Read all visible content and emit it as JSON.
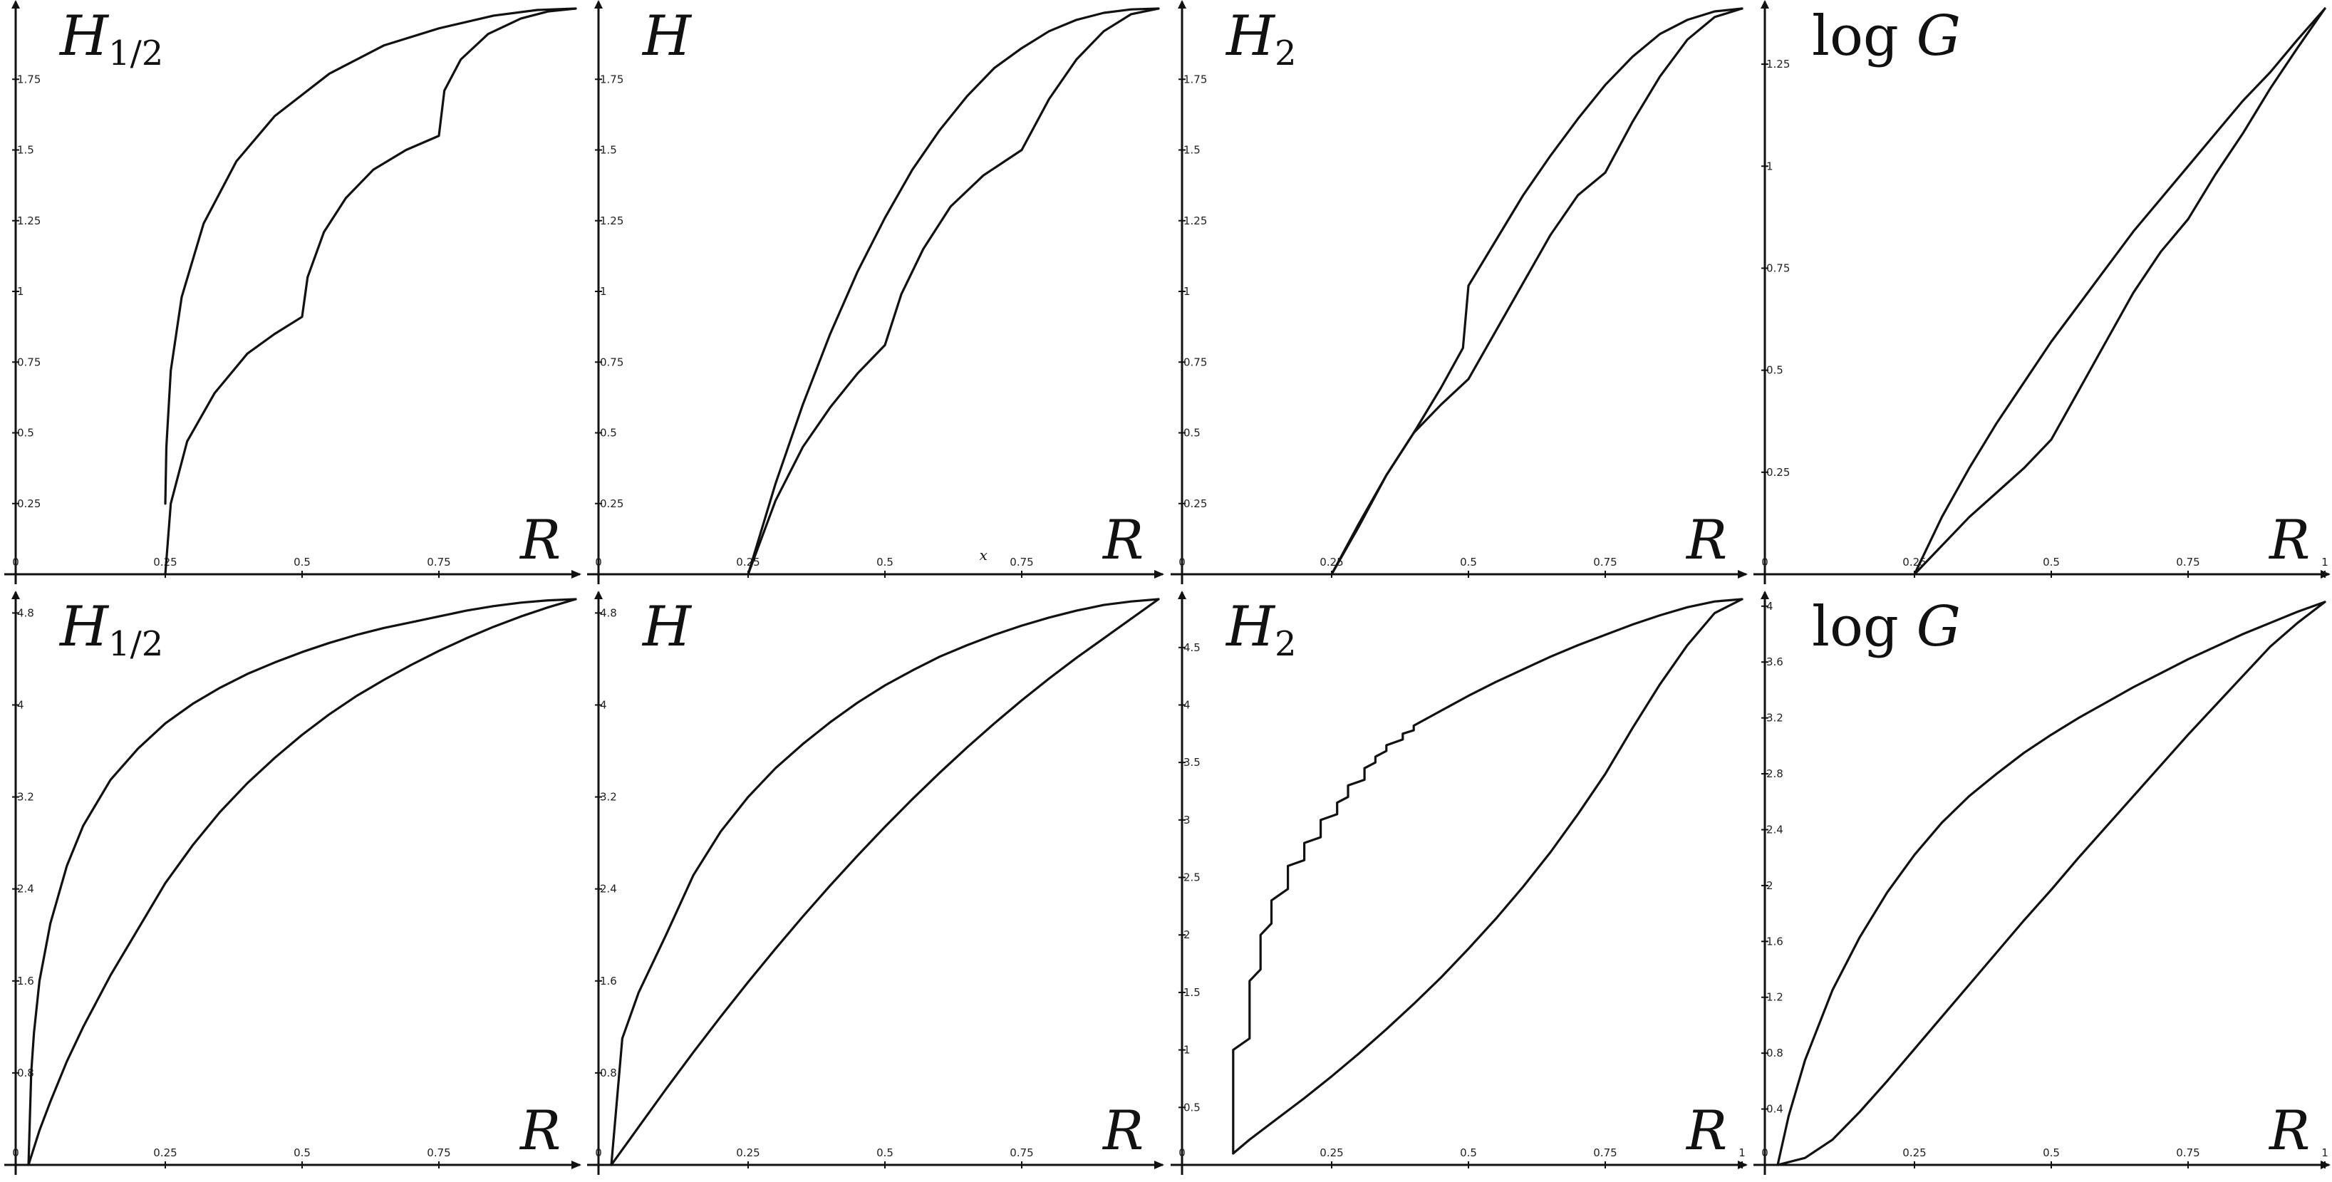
{
  "chart_data": [
    {
      "type": "line",
      "title_main": "H",
      "title_sub": "1/2",
      "xlabel": "R",
      "xlim": [
        0,
        1
      ],
      "ylim": [
        0,
        2
      ],
      "xticks": [
        "0",
        "0.25",
        "0.5",
        "0.75"
      ],
      "xtick_values": [
        0,
        0.25,
        0.5,
        0.75
      ],
      "yticks": [
        "0.25",
        "0.5",
        "0.75",
        "1",
        "1.25",
        "1.5",
        "1.75"
      ],
      "ytick_values": [
        0.25,
        0.5,
        0.75,
        1,
        1.25,
        1.5,
        1.75
      ],
      "series": [
        {
          "x": [
            0.25,
            0.252,
            0.26,
            0.28,
            0.32,
            0.38,
            0.45,
            0.55,
            0.65,
            0.75,
            0.85,
            0.93,
            1.0
          ],
          "values": [
            0.25,
            0.45,
            0.72,
            0.98,
            1.24,
            1.46,
            1.62,
            1.77,
            1.87,
            1.93,
            1.975,
            1.995,
            2.0
          ]
        },
        {
          "x": [
            0.25,
            0.26,
            0.29,
            0.34,
            0.4,
            0.45,
            0.5,
            0.51,
            0.54,
            0.58,
            0.63,
            0.69,
            0.75,
            0.76,
            0.79,
            0.84,
            0.9,
            0.95,
            1.0
          ],
          "values": [
            0.0,
            0.25,
            0.47,
            0.64,
            0.78,
            0.85,
            0.91,
            1.05,
            1.21,
            1.33,
            1.43,
            1.5,
            1.55,
            1.71,
            1.82,
            1.91,
            1.965,
            1.99,
            2.0
          ]
        }
      ]
    },
    {
      "type": "line",
      "title_main": "H",
      "title_sub": "",
      "xlabel": "R",
      "xlim": [
        0,
        1
      ],
      "ylim": [
        0,
        2
      ],
      "xticks": [
        "0",
        "0.25",
        "0.5",
        "0.75"
      ],
      "xtick_values": [
        0,
        0.25,
        0.5,
        0.75
      ],
      "yticks": [
        "0.25",
        "0.5",
        "0.75",
        "1",
        "1.25",
        "1.5",
        "1.75"
      ],
      "ytick_values": [
        0.25,
        0.5,
        0.75,
        1,
        1.25,
        1.5,
        1.75
      ],
      "stray_text": "x",
      "series": [
        {
          "x": [
            0.25,
            0.3,
            0.35,
            0.4,
            0.45,
            0.5,
            0.55,
            0.6,
            0.65,
            0.7,
            0.75,
            0.8,
            0.85,
            0.9,
            0.95,
            1.0
          ],
          "values": [
            0.0,
            0.32,
            0.6,
            0.85,
            1.07,
            1.26,
            1.43,
            1.57,
            1.69,
            1.79,
            1.86,
            1.92,
            1.96,
            1.985,
            1.997,
            2.0
          ]
        },
        {
          "x": [
            0.25,
            0.3,
            0.35,
            0.4,
            0.45,
            0.5,
            0.53,
            0.57,
            0.62,
            0.68,
            0.75,
            0.8,
            0.85,
            0.9,
            0.95,
            1.0
          ],
          "values": [
            0.0,
            0.26,
            0.45,
            0.59,
            0.71,
            0.81,
            0.99,
            1.15,
            1.3,
            1.41,
            1.5,
            1.68,
            1.82,
            1.92,
            1.98,
            2.0
          ]
        }
      ]
    },
    {
      "type": "line",
      "title_main": "H",
      "title_sub": "2",
      "xlabel": "R",
      "xlim": [
        0,
        1
      ],
      "ylim": [
        0,
        2
      ],
      "xticks": [
        "0",
        "0.25",
        "0.5",
        "0.75"
      ],
      "xtick_values": [
        0,
        0.25,
        0.5,
        0.75
      ],
      "yticks": [
        "0.25",
        "0.5",
        "0.75",
        "1",
        "1.25",
        "1.5",
        "1.75"
      ],
      "ytick_values": [
        0.25,
        0.5,
        0.75,
        1,
        1.25,
        1.5,
        1.75
      ],
      "series": [
        {
          "x": [
            0.25,
            0.3,
            0.35,
            0.4,
            0.45,
            0.49,
            0.5,
            0.55,
            0.6,
            0.65,
            0.7,
            0.75,
            0.8,
            0.85,
            0.9,
            0.95,
            1.0
          ],
          "values": [
            0.0,
            0.17,
            0.35,
            0.5,
            0.66,
            0.8,
            1.02,
            1.18,
            1.34,
            1.48,
            1.61,
            1.73,
            1.83,
            1.91,
            1.96,
            1.99,
            2.0
          ]
        },
        {
          "x": [
            0.25,
            0.3,
            0.35,
            0.4,
            0.45,
            0.5,
            0.55,
            0.6,
            0.65,
            0.7,
            0.75,
            0.8,
            0.85,
            0.9,
            0.95,
            1.0
          ],
          "values": [
            0.0,
            0.18,
            0.35,
            0.5,
            0.6,
            0.69,
            0.86,
            1.03,
            1.2,
            1.34,
            1.42,
            1.6,
            1.76,
            1.89,
            1.97,
            2.0
          ]
        }
      ]
    },
    {
      "type": "line",
      "title_main": "G",
      "title_fn": "log",
      "title_sub": "",
      "xlabel": "R",
      "xlim": [
        0,
        1
      ],
      "ylim": [
        0,
        1.3863
      ],
      "xticks": [
        "0",
        "0.25",
        "0.5",
        "0.75",
        "1"
      ],
      "xtick_values": [
        0,
        0.25,
        0.5,
        0.75,
        1
      ],
      "yticks": [
        "0.25",
        "0.5",
        "0.75",
        "1",
        "1.25"
      ],
      "ytick_values": [
        0.25,
        0.5,
        0.75,
        1,
        1.25
      ],
      "series": [
        {
          "x": [
            0.25,
            0.3,
            0.35,
            0.4,
            0.45,
            0.5,
            0.55,
            0.6,
            0.65,
            0.7,
            0.75,
            0.8,
            0.85,
            0.9,
            0.95,
            1.0
          ],
          "values": [
            0.0,
            0.14,
            0.26,
            0.37,
            0.47,
            0.57,
            0.66,
            0.75,
            0.84,
            0.92,
            1.0,
            1.08,
            1.16,
            1.23,
            1.31,
            1.3863
          ]
        },
        {
          "x": [
            0.25,
            0.3,
            0.35,
            0.4,
            0.45,
            0.5,
            0.55,
            0.6,
            0.65,
            0.7,
            0.75,
            0.8,
            0.85,
            0.9,
            0.95,
            1.0
          ],
          "values": [
            0.0,
            0.07,
            0.14,
            0.2,
            0.26,
            0.33,
            0.45,
            0.57,
            0.69,
            0.79,
            0.87,
            0.98,
            1.08,
            1.19,
            1.29,
            1.3863
          ]
        }
      ]
    },
    {
      "type": "line",
      "title_main": "H",
      "title_sub": "1/2",
      "xlabel": "R",
      "xlim": [
        0,
        1
      ],
      "ylim": [
        0,
        4.92
      ],
      "xticks": [
        "0",
        "0.25",
        "0.5",
        "0.75"
      ],
      "xtick_values": [
        0,
        0.25,
        0.5,
        0.75
      ],
      "yticks": [
        "0.8",
        "1.6",
        "2.4",
        "3.2",
        "4",
        "4.8"
      ],
      "ytick_values": [
        0.8,
        1.6,
        2.4,
        3.2,
        4,
        4.8
      ],
      "series": [
        {
          "x": [
            0,
            0.005,
            0.01,
            0.02,
            0.04,
            0.07,
            0.1,
            0.15,
            0.2,
            0.25,
            0.3,
            0.35,
            0.4,
            0.45,
            0.5,
            0.55,
            0.6,
            0.65,
            0.7,
            0.75,
            0.8,
            0.85,
            0.9,
            0.95,
            1.0
          ],
          "values": [
            0,
            0.8,
            1.15,
            1.6,
            2.1,
            2.6,
            2.95,
            3.35,
            3.62,
            3.84,
            4.01,
            4.15,
            4.27,
            4.37,
            4.46,
            4.54,
            4.61,
            4.67,
            4.72,
            4.77,
            4.82,
            4.86,
            4.89,
            4.91,
            4.92
          ]
        },
        {
          "x": [
            0,
            0.01,
            0.02,
            0.04,
            0.07,
            0.1,
            0.15,
            0.2,
            0.25,
            0.3,
            0.35,
            0.4,
            0.45,
            0.5,
            0.55,
            0.6,
            0.65,
            0.7,
            0.75,
            0.8,
            0.85,
            0.9,
            0.95,
            1.0
          ],
          "values": [
            0,
            0.15,
            0.3,
            0.55,
            0.9,
            1.2,
            1.65,
            2.05,
            2.45,
            2.78,
            3.07,
            3.32,
            3.54,
            3.74,
            3.92,
            4.08,
            4.22,
            4.35,
            4.47,
            4.58,
            4.68,
            4.77,
            4.85,
            4.92
          ]
        }
      ]
    },
    {
      "type": "line",
      "title_main": "H",
      "title_sub": "",
      "xlabel": "R",
      "xlim": [
        0,
        1
      ],
      "ylim": [
        0,
        4.92
      ],
      "xticks": [
        "0",
        "0.25",
        "0.5",
        "0.75"
      ],
      "xtick_values": [
        0,
        0.25,
        0.5,
        0.75
      ],
      "yticks": [
        "0.8",
        "1.6",
        "2.4",
        "3.2",
        "4",
        "4.8"
      ],
      "ytick_values": [
        0.8,
        1.6,
        2.4,
        3.2,
        4,
        4.8
      ],
      "series": [
        {
          "x": [
            0,
            0.02,
            0.05,
            0.1,
            0.15,
            0.2,
            0.25,
            0.3,
            0.35,
            0.4,
            0.45,
            0.5,
            0.55,
            0.6,
            0.65,
            0.7,
            0.75,
            0.8,
            0.85,
            0.9,
            0.95,
            1.0
          ],
          "values": [
            0,
            1.1,
            1.5,
            2.0,
            2.52,
            2.9,
            3.2,
            3.45,
            3.66,
            3.85,
            4.02,
            4.17,
            4.3,
            4.42,
            4.52,
            4.61,
            4.69,
            4.76,
            4.82,
            4.87,
            4.9,
            4.92
          ]
        },
        {
          "x": [
            0,
            0.05,
            0.1,
            0.15,
            0.2,
            0.25,
            0.3,
            0.35,
            0.4,
            0.45,
            0.5,
            0.55,
            0.6,
            0.65,
            0.7,
            0.75,
            0.8,
            0.85,
            0.9,
            0.95,
            1.0
          ],
          "values": [
            0,
            0.33,
            0.66,
            0.98,
            1.29,
            1.59,
            1.88,
            2.16,
            2.43,
            2.69,
            2.94,
            3.18,
            3.41,
            3.63,
            3.84,
            4.04,
            4.23,
            4.41,
            4.58,
            4.75,
            4.92
          ]
        }
      ]
    },
    {
      "type": "line",
      "title_main": "H",
      "title_sub": "2",
      "xlabel": "R",
      "xlim": [
        0,
        1
      ],
      "ylim": [
        0,
        4.92
      ],
      "xticks": [
        "0",
        "0.25",
        "0.5",
        "0.75",
        "1"
      ],
      "xtick_values": [
        0,
        0.25,
        0.5,
        0.75,
        1
      ],
      "yticks": [
        "0.5",
        "1",
        "1.5",
        "2",
        "2.5",
        "3",
        "3.5",
        "4",
        "4.5"
      ],
      "ytick_values": [
        0.5,
        1,
        1.5,
        2,
        2.5,
        3,
        3.5,
        4,
        4.5
      ],
      "series": [
        {
          "x": [
            0.07,
            0.07,
            0.1,
            0.1,
            0.12,
            0.12,
            0.14,
            0.14,
            0.17,
            0.17,
            0.2,
            0.2,
            0.23,
            0.23,
            0.26,
            0.26,
            0.28,
            0.28,
            0.31,
            0.31,
            0.33,
            0.33,
            0.35,
            0.35,
            0.38,
            0.38,
            0.4,
            0.4,
            0.45,
            0.5,
            0.55,
            0.6,
            0.65,
            0.7,
            0.75,
            0.8,
            0.85,
            0.9,
            0.95,
            1.0
          ],
          "values": [
            0.1,
            1.0,
            1.1,
            1.6,
            1.7,
            2.0,
            2.1,
            2.3,
            2.4,
            2.6,
            2.65,
            2.8,
            2.85,
            3.0,
            3.05,
            3.15,
            3.2,
            3.3,
            3.35,
            3.45,
            3.5,
            3.55,
            3.6,
            3.65,
            3.7,
            3.75,
            3.78,
            3.82,
            3.95,
            4.08,
            4.2,
            4.31,
            4.42,
            4.52,
            4.61,
            4.7,
            4.78,
            4.85,
            4.9,
            4.92
          ]
        },
        {
          "x": [
            0.07,
            0.1,
            0.15,
            0.2,
            0.25,
            0.3,
            0.35,
            0.4,
            0.45,
            0.5,
            0.55,
            0.6,
            0.65,
            0.7,
            0.75,
            0.8,
            0.85,
            0.9,
            0.95,
            1.0
          ],
          "values": [
            0.1,
            0.22,
            0.4,
            0.58,
            0.77,
            0.97,
            1.18,
            1.4,
            1.63,
            1.88,
            2.14,
            2.42,
            2.72,
            3.05,
            3.4,
            3.8,
            4.18,
            4.52,
            4.8,
            4.92
          ]
        }
      ]
    },
    {
      "type": "line",
      "title_main": "G",
      "title_fn": "log",
      "title_sub": "",
      "xlabel": "R",
      "xlim": [
        0,
        1
      ],
      "ylim": [
        0,
        4.05
      ],
      "xticks": [
        "0",
        "0.25",
        "0.5",
        "0.75",
        "1"
      ],
      "xtick_values": [
        0,
        0.25,
        0.5,
        0.75,
        1
      ],
      "yticks": [
        "0.4",
        "0.8",
        "1.2",
        "1.6",
        "2",
        "2.4",
        "2.8",
        "3.2",
        "3.6",
        "4"
      ],
      "ytick_values": [
        0.4,
        0.8,
        1.2,
        1.6,
        2,
        2.4,
        2.8,
        3.2,
        3.6,
        4
      ],
      "series": [
        {
          "x": [
            0,
            0.02,
            0.05,
            0.1,
            0.15,
            0.2,
            0.25,
            0.3,
            0.35,
            0.4,
            0.45,
            0.5,
            0.55,
            0.6,
            0.65,
            0.7,
            0.75,
            0.8,
            0.85,
            0.9,
            0.95,
            1.0
          ],
          "values": [
            0,
            0.35,
            0.75,
            1.25,
            1.63,
            1.95,
            2.22,
            2.45,
            2.64,
            2.8,
            2.95,
            3.08,
            3.2,
            3.31,
            3.42,
            3.52,
            3.62,
            3.71,
            3.8,
            3.88,
            3.96,
            4.03
          ]
        },
        {
          "x": [
            0,
            0.05,
            0.1,
            0.15,
            0.2,
            0.25,
            0.3,
            0.35,
            0.4,
            0.45,
            0.5,
            0.55,
            0.6,
            0.65,
            0.7,
            0.75,
            0.8,
            0.85,
            0.9,
            0.95,
            1.0
          ],
          "values": [
            0,
            0.05,
            0.18,
            0.38,
            0.6,
            0.83,
            1.06,
            1.29,
            1.52,
            1.75,
            1.97,
            2.2,
            2.42,
            2.64,
            2.86,
            3.08,
            3.29,
            3.5,
            3.71,
            3.88,
            4.03
          ]
        }
      ]
    }
  ]
}
